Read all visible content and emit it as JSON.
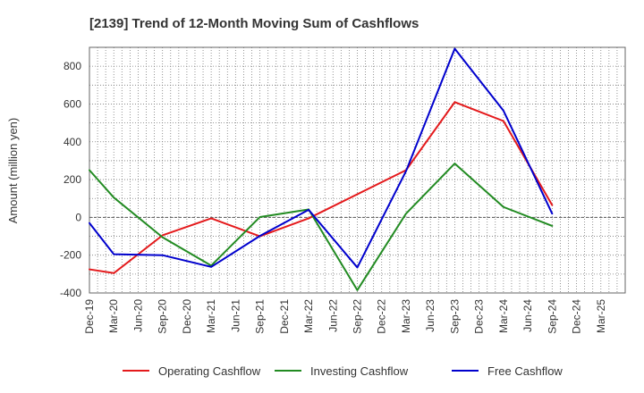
{
  "chart_data": {
    "type": "line",
    "title": "[2139]  Trend of 12-Month Moving Sum of Cashflows",
    "xlabel": "",
    "ylabel": "Amount (million yen)",
    "ylim": [
      -400,
      900
    ],
    "yticks": [
      -400,
      -200,
      0,
      200,
      400,
      600,
      800
    ],
    "categories": [
      "Dec-19",
      "Mar-20",
      "Jun-20",
      "Sep-20",
      "Dec-20",
      "Mar-21",
      "Jun-21",
      "Sep-21",
      "Dec-21",
      "Mar-22",
      "Jun-22",
      "Sep-22",
      "Dec-22",
      "Mar-23",
      "Jun-23",
      "Sep-23",
      "Dec-23",
      "Mar-24",
      "Jun-24",
      "Sep-24",
      "Dec-24",
      "Mar-25"
    ],
    "grid": true,
    "legend_position": "bottom",
    "series": [
      {
        "name": "Operating Cashflow",
        "color": "#e41a1c",
        "points": [
          {
            "x": "Dec-19",
            "y": -275
          },
          {
            "x": "Mar-20",
            "y": -295
          },
          {
            "x": "Sep-20",
            "y": -95
          },
          {
            "x": "Mar-21",
            "y": -5
          },
          {
            "x": "Sep-21",
            "y": -100
          },
          {
            "x": "Mar-22",
            "y": -5
          },
          {
            "x": "Mar-23",
            "y": 250
          },
          {
            "x": "Sep-23",
            "y": 610
          },
          {
            "x": "Mar-24",
            "y": 510
          },
          {
            "x": "Sep-24",
            "y": 65
          }
        ]
      },
      {
        "name": "Investing Cashflow",
        "color": "#228b22",
        "points": [
          {
            "x": "Dec-19",
            "y": 250
          },
          {
            "x": "Mar-20",
            "y": 105
          },
          {
            "x": "Sep-20",
            "y": -105
          },
          {
            "x": "Mar-21",
            "y": -255
          },
          {
            "x": "Sep-21",
            "y": 2
          },
          {
            "x": "Mar-22",
            "y": 42
          },
          {
            "x": "Sep-22",
            "y": -385
          },
          {
            "x": "Mar-23",
            "y": 20
          },
          {
            "x": "Sep-23",
            "y": 285
          },
          {
            "x": "Mar-24",
            "y": 55
          },
          {
            "x": "Sep-24",
            "y": -45
          }
        ]
      },
      {
        "name": "Free Cashflow",
        "color": "#0000cd",
        "points": [
          {
            "x": "Dec-19",
            "y": -30
          },
          {
            "x": "Mar-20",
            "y": -195
          },
          {
            "x": "Sep-20",
            "y": -200
          },
          {
            "x": "Mar-21",
            "y": -262
          },
          {
            "x": "Sep-21",
            "y": -98
          },
          {
            "x": "Mar-22",
            "y": 40
          },
          {
            "x": "Sep-22",
            "y": -265
          },
          {
            "x": "Mar-23",
            "y": 245
          },
          {
            "x": "Sep-23",
            "y": 893
          },
          {
            "x": "Mar-24",
            "y": 565
          },
          {
            "x": "Sep-24",
            "y": 20
          }
        ]
      }
    ]
  }
}
